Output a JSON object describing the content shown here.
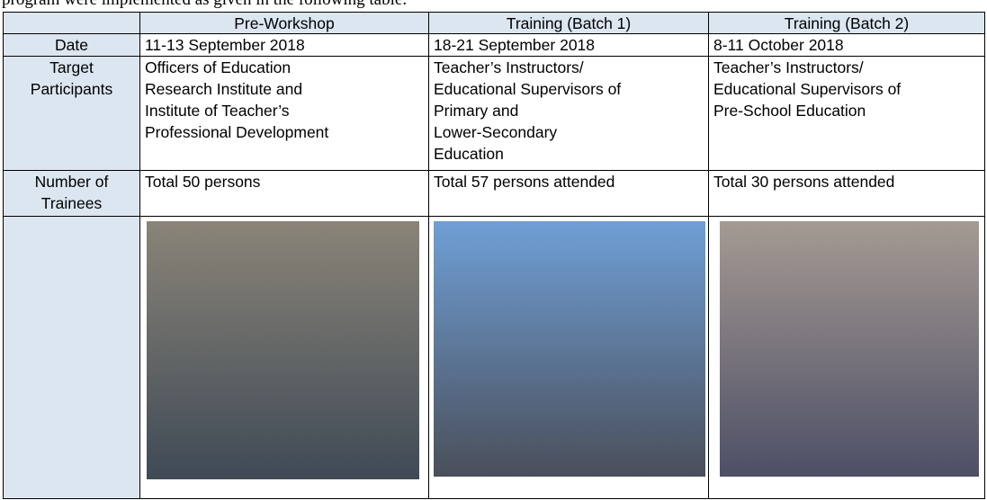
{
  "intro": "program were implemented as given in the following table.",
  "table": {
    "header": [
      "",
      "Pre-Workshop",
      "Training (Batch 1)",
      "Training (Batch 2)"
    ],
    "rows": [
      [
        [
          "Date"
        ],
        [
          "11-13 September 2018"
        ],
        [
          "18-21 September 2018"
        ],
        [
          "8-11 October 2018"
        ]
      ],
      [
        [
          "Target",
          "Participants"
        ],
        [
          "Officers of Education",
          "Research Institute and",
          "Institute of Teacher’s",
          "Professional Development"
        ],
        [
          "Teacher’s Instructors/",
          "Educational Supervisors of",
          "Primary and",
          "Lower-Secondary",
          "Education"
        ],
        [
          "Teacher’s Instructors/",
          "Educational Supervisors of",
          "Pre-School Education"
        ]
      ],
      [
        [
          "Number of",
          "Trainees"
        ],
        [
          "Total 50 persons"
        ],
        [
          "Total 57 persons attended"
        ],
        [
          "Total 30 persons attended"
        ]
      ]
    ]
  }
}
